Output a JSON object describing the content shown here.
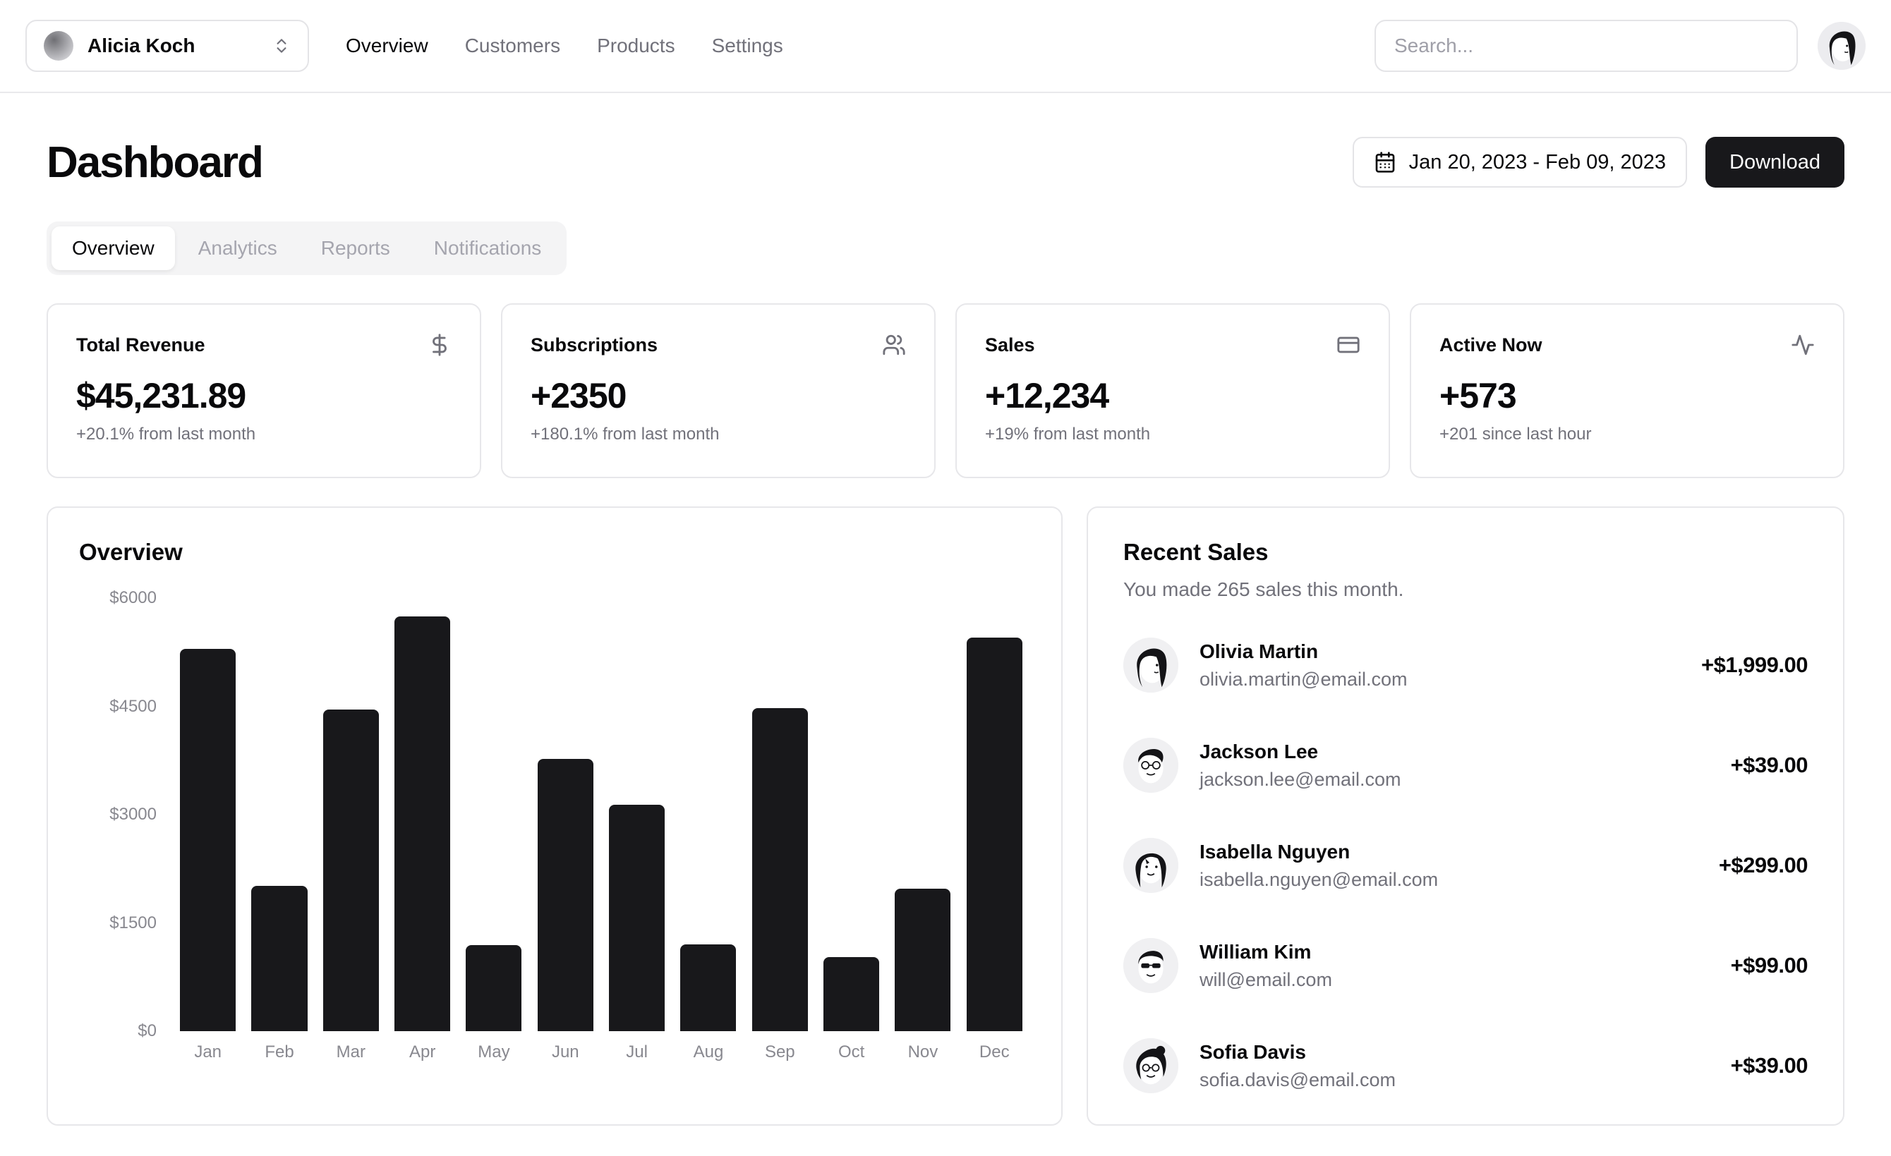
{
  "header": {
    "team": {
      "name": "Alicia Koch"
    },
    "nav": {
      "items": [
        {
          "label": "Overview",
          "active": true
        },
        {
          "label": "Customers",
          "active": false
        },
        {
          "label": "Products",
          "active": false
        },
        {
          "label": "Settings",
          "active": false
        }
      ]
    },
    "search": {
      "placeholder": "Search..."
    }
  },
  "page": {
    "title": "Dashboard",
    "date_range": "Jan 20, 2023 - Feb 09, 2023",
    "download_label": "Download"
  },
  "tabs": [
    {
      "label": "Overview",
      "active": true
    },
    {
      "label": "Analytics",
      "active": false
    },
    {
      "label": "Reports",
      "active": false
    },
    {
      "label": "Notifications",
      "active": false
    }
  ],
  "stats": [
    {
      "title": "Total Revenue",
      "icon": "dollar-sign-icon",
      "value": "$45,231.89",
      "change": "+20.1% from last month"
    },
    {
      "title": "Subscriptions",
      "icon": "users-icon",
      "value": "+2350",
      "change": "+180.1% from last month"
    },
    {
      "title": "Sales",
      "icon": "credit-card-icon",
      "value": "+12,234",
      "change": "+19% from last month"
    },
    {
      "title": "Active Now",
      "icon": "activity-icon",
      "value": "+573",
      "change": "+201 since last hour"
    }
  ],
  "chart_data": {
    "type": "bar",
    "title": "Overview",
    "categories": [
      "Jan",
      "Feb",
      "Mar",
      "Apr",
      "May",
      "Jun",
      "Jul",
      "Aug",
      "Sep",
      "Oct",
      "Nov",
      "Dec"
    ],
    "values": [
      5300,
      2010,
      4460,
      5750,
      1190,
      3770,
      3140,
      1200,
      4480,
      1030,
      1970,
      5450
    ],
    "xlabel": "",
    "ylabel": "",
    "ylim": [
      0,
      6000
    ],
    "yticks": [
      6000,
      4500,
      3000,
      1500,
      0
    ],
    "ytick_labels": [
      "$6000",
      "$4500",
      "$3000",
      "$1500",
      "$0"
    ],
    "bar_color": "#18181b",
    "grid": false,
    "legend": false
  },
  "recent_sales": {
    "title": "Recent Sales",
    "subtitle": "You made 265 sales this month.",
    "items": [
      {
        "name": "Olivia Martin",
        "email": "olivia.martin@email.com",
        "amount": "+$1,999.00"
      },
      {
        "name": "Jackson Lee",
        "email": "jackson.lee@email.com",
        "amount": "+$39.00"
      },
      {
        "name": "Isabella Nguyen",
        "email": "isabella.nguyen@email.com",
        "amount": "+$299.00"
      },
      {
        "name": "William Kim",
        "email": "will@email.com",
        "amount": "+$99.00"
      },
      {
        "name": "Sofia Davis",
        "email": "sofia.davis@email.com",
        "amount": "+$39.00"
      }
    ]
  },
  "colors": {
    "accent": "#18181b",
    "muted_text": "#71717a",
    "border": "#e4e4e7",
    "tab_bg": "#f4f4f5",
    "bar": "#18181b"
  }
}
